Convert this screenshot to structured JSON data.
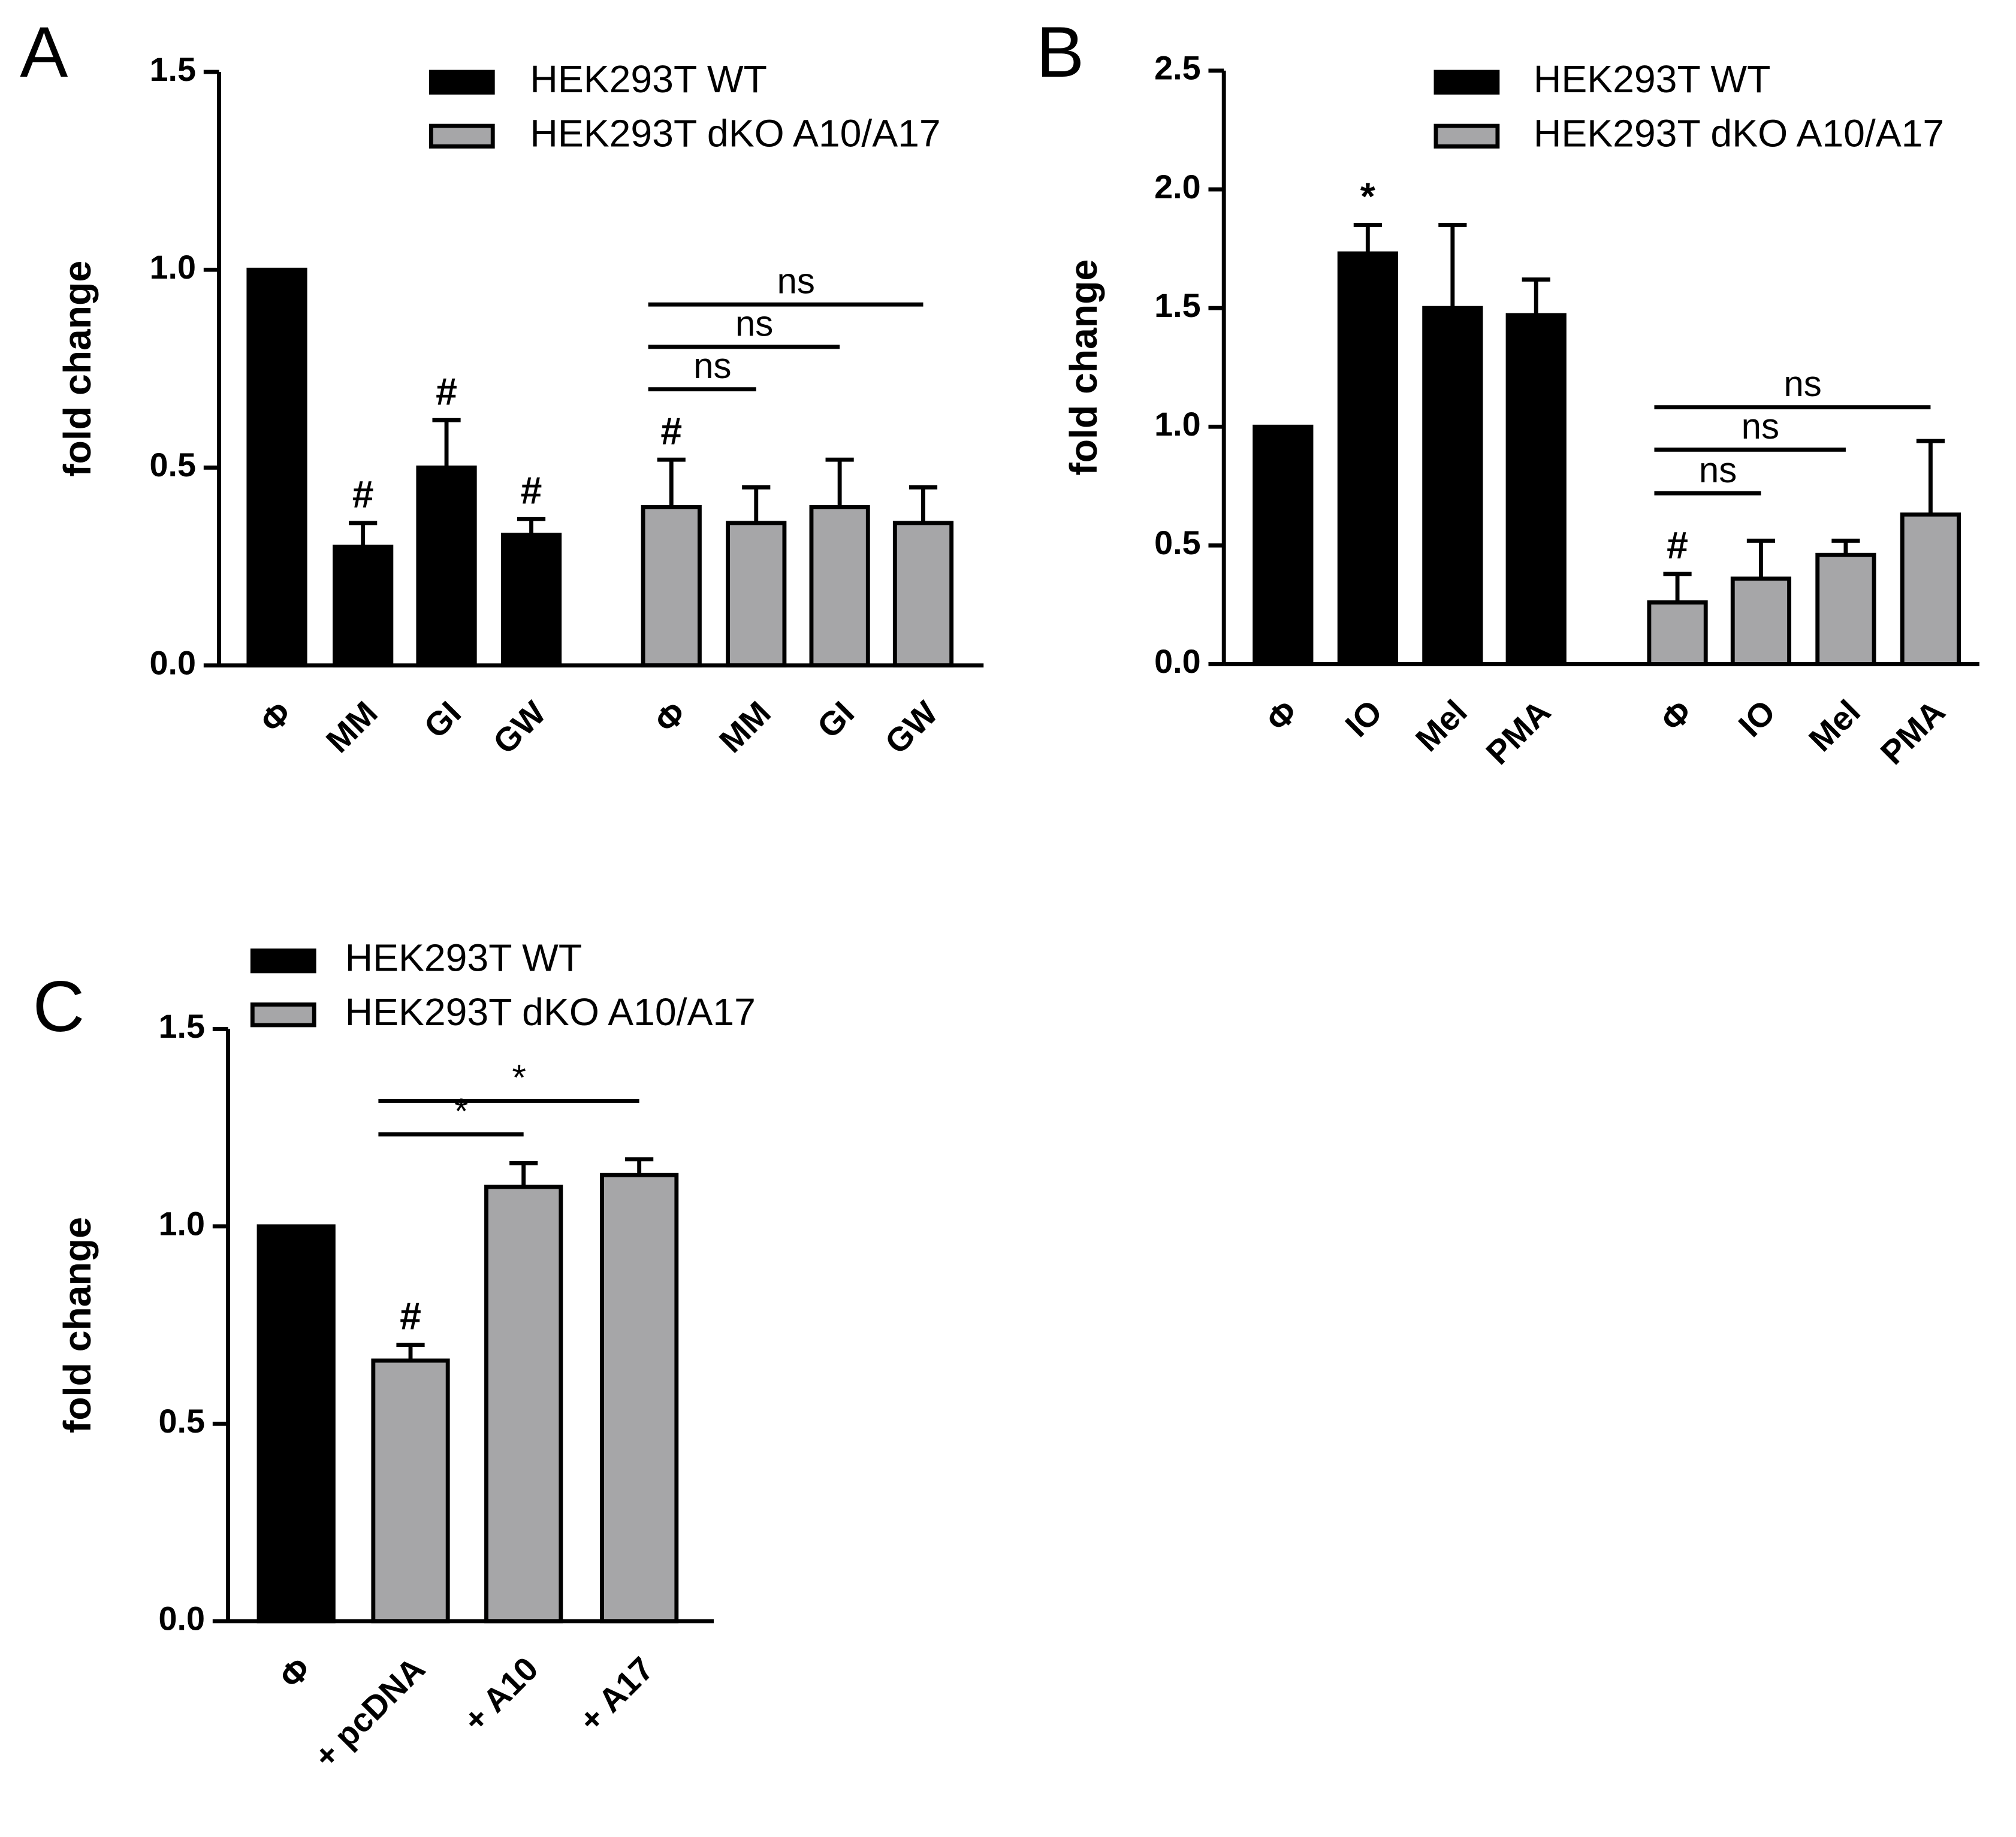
{
  "chart_data": [
    {
      "type": "bar",
      "panel": "A",
      "y_label": "fold change",
      "categories": [
        "Φ",
        "MM",
        "GI",
        "GW",
        "Φ",
        "MM",
        "GI",
        "GW"
      ],
      "series": [
        {
          "name": "HEK293T WT",
          "color": "#000000",
          "values": [
            1.0,
            0.3,
            0.5,
            0.33,
            null,
            null,
            null,
            null
          ],
          "errors": [
            null,
            0.06,
            0.12,
            0.04,
            null,
            null,
            null,
            null
          ],
          "markers": [
            null,
            "#",
            "#",
            "#",
            null,
            null,
            null,
            null
          ]
        },
        {
          "name": "HEK293T dKO A10/A17",
          "color": "#a6a6a8",
          "values": [
            null,
            null,
            null,
            null,
            0.4,
            0.36,
            0.4,
            0.36
          ],
          "errors": [
            null,
            null,
            null,
            null,
            0.12,
            0.09,
            0.12,
            0.09
          ],
          "markers": [
            null,
            null,
            null,
            null,
            "#",
            null,
            null,
            null
          ]
        }
      ],
      "comparisons": [
        {
          "label": "ns",
          "categories": [
            4,
            5
          ]
        },
        {
          "label": "ns",
          "categories": [
            4,
            6
          ]
        },
        {
          "label": "ns",
          "categories": [
            4,
            7
          ]
        }
      ],
      "ylim": [
        0,
        1.5
      ],
      "yticks": [
        {
          "value": 0,
          "label": "0.0"
        },
        0.5,
        {
          "value": 1,
          "label": "1.0"
        },
        1.5
      ]
    },
    {
      "type": "bar",
      "panel": "B",
      "y_label": "fold change",
      "categories": [
        "Φ",
        "IO",
        "Mel",
        "PMA",
        "Φ",
        "IO",
        "Mel",
        "PMA"
      ],
      "series": [
        {
          "name": "HEK293T WT",
          "color": "#000000",
          "values": [
            1.0,
            1.73,
            1.5,
            1.47,
            null,
            null,
            null,
            null
          ],
          "errors": [
            null,
            0.12,
            0.35,
            0.15,
            null,
            null,
            null,
            null
          ],
          "markers": [
            null,
            "*",
            null,
            null,
            null,
            null,
            null,
            null
          ]
        },
        {
          "name": "HEK293T dKO A10/A17",
          "color": "#a6a6a8",
          "values": [
            null,
            null,
            null,
            null,
            0.26,
            0.36,
            0.46,
            0.63
          ],
          "errors": [
            null,
            null,
            null,
            null,
            0.12,
            0.16,
            0.06,
            0.31
          ],
          "markers": [
            null,
            null,
            null,
            null,
            "#",
            null,
            null,
            null
          ]
        }
      ],
      "comparisons": [
        {
          "label": "ns",
          "categories": [
            4,
            5
          ]
        },
        {
          "label": "ns",
          "categories": [
            4,
            6
          ]
        },
        {
          "label": "ns",
          "categories": [
            4,
            7
          ]
        }
      ],
      "ylim": [
        0,
        2.5
      ],
      "yticks": [
        {
          "value": 0,
          "label": "0.0"
        },
        0.5,
        {
          "value": 1,
          "label": "1.0"
        },
        1.5,
        {
          "value": 2,
          "label": "2.0"
        },
        2.5
      ]
    },
    {
      "type": "bar",
      "panel": "C",
      "y_label": "fold change",
      "categories": [
        "Φ",
        "+ pcDNA",
        "+ A10",
        "+ A17"
      ],
      "series": [
        {
          "name": "HEK293T WT",
          "color": "#000000",
          "values": [
            1.0,
            null,
            null,
            null
          ],
          "errors": [
            null,
            null,
            null,
            null
          ],
          "markers": [
            null,
            null,
            null,
            null
          ]
        },
        {
          "name": "HEK293T dKO A10/A17",
          "color": "#a6a6a8",
          "values": [
            null,
            0.66,
            1.1,
            1.13
          ],
          "errors": [
            null,
            0.04,
            0.06,
            0.04
          ],
          "markers": [
            null,
            "#",
            null,
            null
          ]
        }
      ],
      "comparisons": [
        {
          "label": "*",
          "categories": [
            1,
            2
          ]
        },
        {
          "label": "*",
          "categories": [
            1,
            3
          ]
        }
      ],
      "ylim": [
        0,
        1.5
      ],
      "yticks": [
        {
          "value": 0,
          "label": "0.0"
        },
        0.5,
        {
          "value": 1,
          "label": "1.0"
        },
        1.5
      ]
    }
  ]
}
